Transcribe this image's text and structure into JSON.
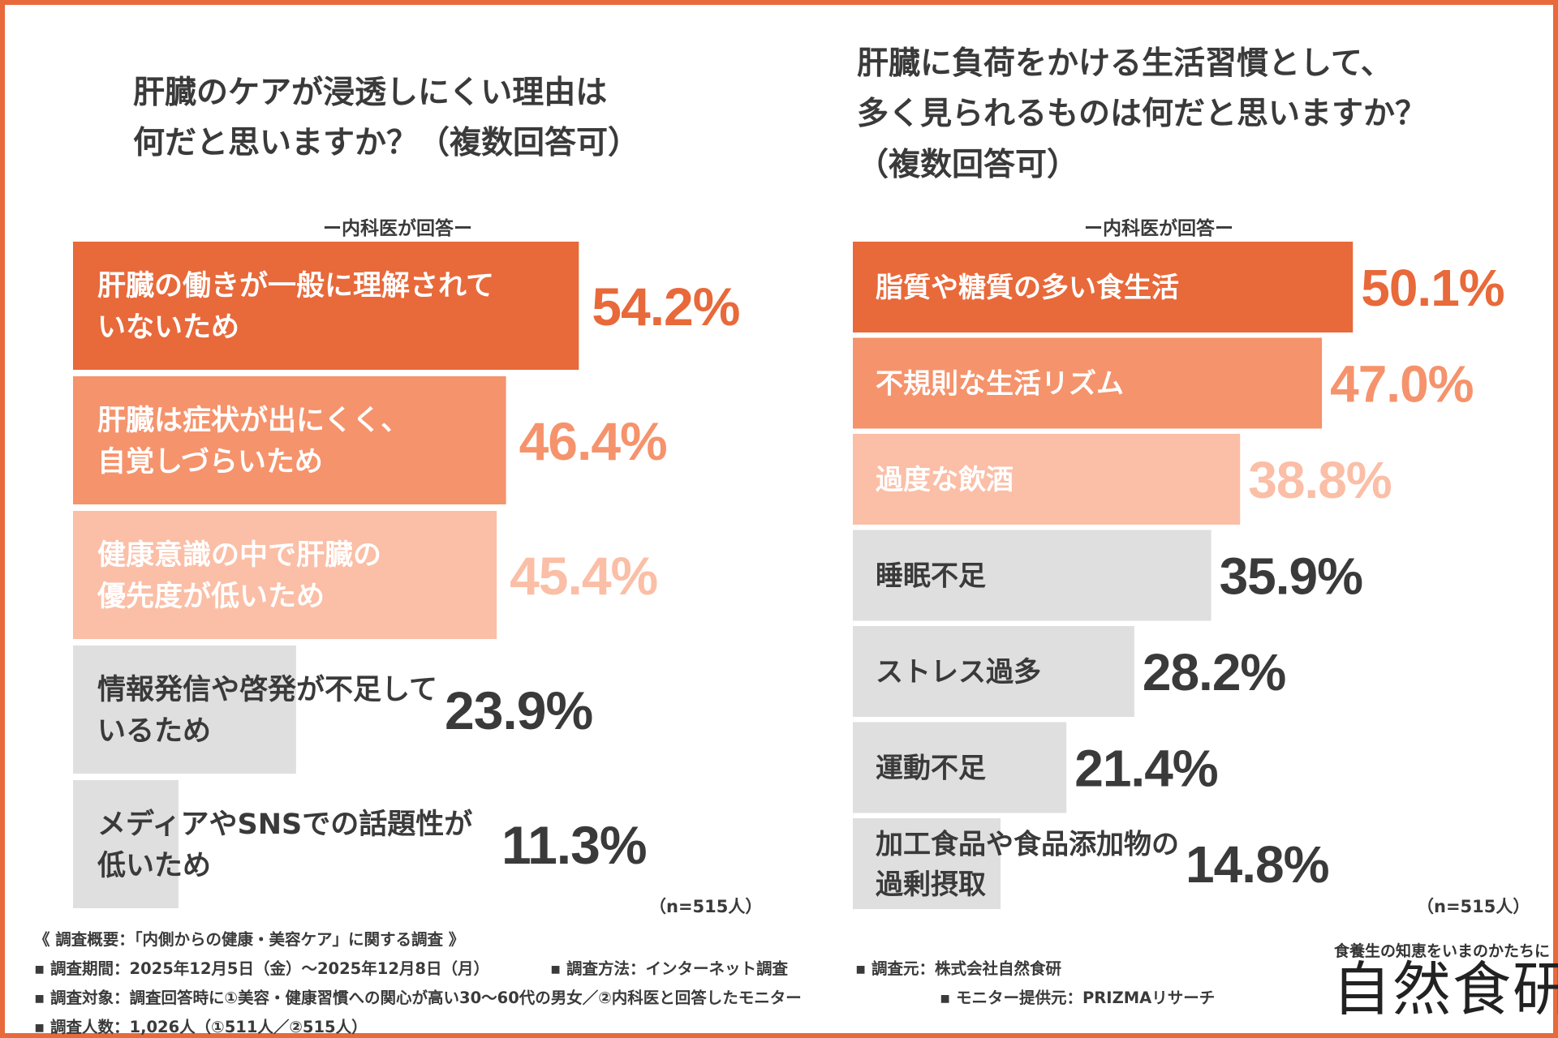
{
  "colors": {
    "border": "#e8693a",
    "rank1": "#e8693a",
    "rank2": "#f5936c",
    "rank3": "#fbbea6",
    "gray": "#dfdfdf",
    "text": "#3a3a3a",
    "white": "#ffffff"
  },
  "footer": {
    "summary": "《 調査概要：「内側からの健康・美容ケア」に関する調査 》",
    "period": "▪ 調査期間：2025年12月5日（金）〜2025年12月8日（月）",
    "method": "▪ 調査方法：インターネット調査",
    "source": "▪ 調査元：株式会社自然食研",
    "target": "▪ 調査対象：調査回答時に①美容・健康習慣への関心が高い30〜60代の男女／②内科医と回答したモニター",
    "provider": "▪ モニター提供元：PRIZMAリサーチ",
    "count": "▪ 調査人数：1,026人（①511人／②515人）"
  },
  "brand": {
    "tagline": "食養生の知恵をいまのかたちに",
    "logo": "自然食研"
  },
  "chart_data": [
    {
      "type": "bar",
      "orientation": "horizontal",
      "title_lines": [
        "肝臓のケアが浸透しにくい理由は",
        "何だと思いますか？（複数回答可）"
      ],
      "subtitle": "ー内科医が回答ー",
      "n_label": "（n=515人）",
      "xlim": [
        0,
        100
      ],
      "categories": [
        [
          "肝臓の働きが一般に理解されて",
          "いないため"
        ],
        [
          "肝臓は症状が出にくく、",
          "自覚しづらいため"
        ],
        [
          "健康意識の中で肝臓の",
          "優先度が低いため"
        ],
        [
          "情報発信や啓発が不足して",
          "いるため"
        ],
        [
          "メディアやSNSでの話題性が",
          "低いため"
        ]
      ],
      "values": [
        54.2,
        46.4,
        45.4,
        23.9,
        11.3
      ],
      "value_labels": [
        "54.2%",
        "46.4%",
        "45.4%",
        "23.9%",
        "11.3%"
      ]
    },
    {
      "type": "bar",
      "orientation": "horizontal",
      "title_lines": [
        "肝臓に負荷をかける生活習慣として、",
        "多く見られるものは何だと思いますか？",
        "（複数回答可）"
      ],
      "subtitle": "ー内科医が回答ー",
      "n_label": "（n=515人）",
      "xlim": [
        0,
        100
      ],
      "categories": [
        [
          "脂質や糖質の多い食生活"
        ],
        [
          "不規則な生活リズム"
        ],
        [
          "過度な飲酒"
        ],
        [
          "睡眠不足"
        ],
        [
          "ストレス過多"
        ],
        [
          "運動不足"
        ],
        [
          "加工食品や食品添加物の",
          "過剰摂取"
        ]
      ],
      "values": [
        50.1,
        47.0,
        38.8,
        35.9,
        28.2,
        21.4,
        14.8
      ],
      "value_labels": [
        "50.1%",
        "47.0%",
        "38.8%",
        "35.9%",
        "28.2%",
        "21.4%",
        "14.8%"
      ]
    }
  ]
}
